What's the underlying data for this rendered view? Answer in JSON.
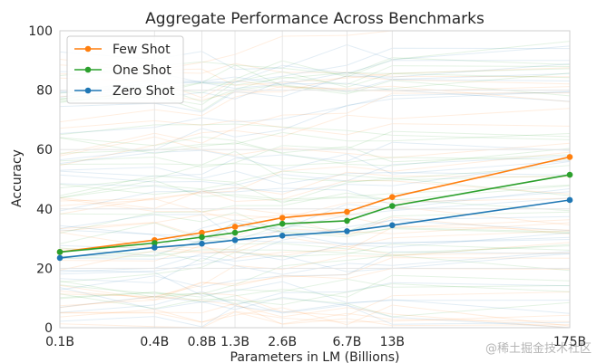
{
  "chart_data": {
    "type": "line",
    "title": "Aggregate Performance Across Benchmarks",
    "xlabel": "Parameters in LM (Billions)",
    "ylabel": "Accuracy",
    "x_scale": "log",
    "x": [
      0.1,
      0.4,
      0.8,
      1.3,
      2.6,
      6.7,
      13,
      175
    ],
    "x_tick_labels": [
      "0.1B",
      "0.4B",
      "0.8B",
      "1.3B",
      "2.6B",
      "6.7B",
      "13B",
      "175B"
    ],
    "ylim": [
      0,
      100
    ],
    "y_ticks": [
      0,
      20,
      40,
      60,
      80,
      100
    ],
    "grid": true,
    "legend_position": "top-left",
    "series": [
      {
        "name": "Few Shot",
        "color": "#ff7f0e",
        "values": [
          25.5,
          29.5,
          32,
          34,
          37,
          39,
          44,
          57.5
        ]
      },
      {
        "name": "One Shot",
        "color": "#2ca02c",
        "values": [
          25.5,
          28.5,
          30.5,
          32,
          35,
          36,
          41,
          51.5
        ]
      },
      {
        "name": "Zero Shot",
        "color": "#1f77b4",
        "values": [
          23.5,
          27,
          28.3,
          29.5,
          31,
          32.5,
          34.5,
          43
        ]
      }
    ]
  },
  "watermark": "@稀土掘金技术社区"
}
